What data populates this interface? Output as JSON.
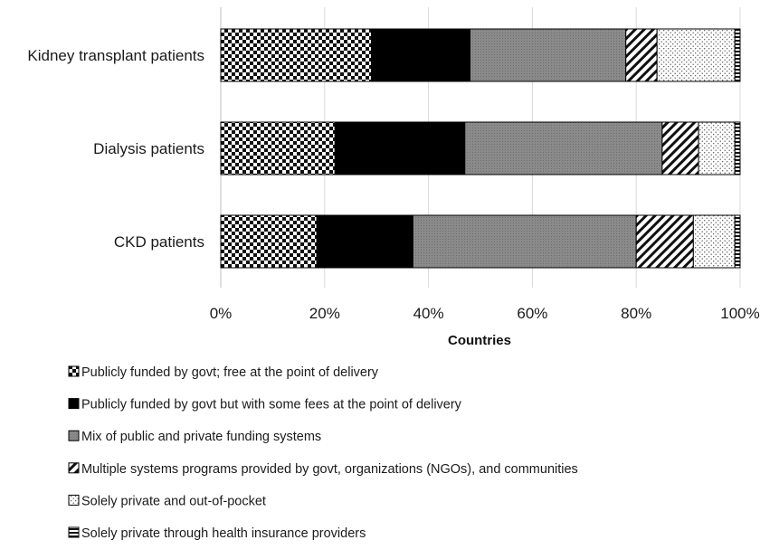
{
  "chart_data": {
    "type": "bar",
    "orientation": "horizontal",
    "stacked": "percent",
    "categories": [
      "Kidney transplant patients",
      "Dialysis patients",
      "CKD patients"
    ],
    "series": [
      {
        "name": "Publicly funded by govt; free at the point of delivery",
        "values": [
          29,
          22,
          18.5
        ],
        "pattern": "checker"
      },
      {
        "name": "Publicly funded by govt but with some fees at the point of delivery",
        "values": [
          19,
          25,
          18.5
        ],
        "pattern": "solid-black"
      },
      {
        "name": "Mix of public and private funding systems",
        "values": [
          30,
          38,
          43
        ],
        "pattern": "gray-dotted"
      },
      {
        "name": "Multiple systems  programs provided by govt, organizations (NGOs), and communities",
        "values": [
          6,
          7,
          11
        ],
        "pattern": "diagonal-hatch"
      },
      {
        "name": "Solely private and out-of-pocket",
        "values": [
          15,
          7,
          8
        ],
        "pattern": "sparse-dots"
      },
      {
        "name": "Solely private through health insurance providers",
        "values": [
          1,
          1,
          1
        ],
        "pattern": "horizontal-lines"
      }
    ],
    "xlim": [
      0,
      100
    ],
    "x_ticks": [
      "0%",
      "20%",
      "40%",
      "60%",
      "80%",
      "100%"
    ],
    "xlabel": "Countries",
    "ylabel": "",
    "grid": "vertical",
    "legend_position": "bottom"
  }
}
